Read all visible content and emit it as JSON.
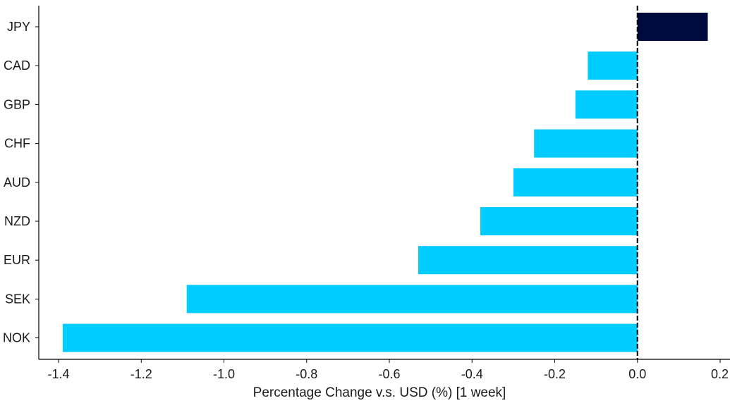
{
  "chart_data": {
    "type": "bar",
    "orientation": "horizontal",
    "categories": [
      "JPY",
      "CAD",
      "GBP",
      "CHF",
      "AUD",
      "NZD",
      "EUR",
      "SEK",
      "NOK"
    ],
    "values": [
      0.17,
      -0.12,
      -0.15,
      -0.25,
      -0.3,
      -0.38,
      -0.53,
      -1.09,
      -1.39
    ],
    "xlabel": "Percentage Change v.s. USD (%) [1 week]",
    "ylabel": "",
    "xlim": [
      -1.42,
      0.2
    ],
    "xticks": [
      "-1.4",
      "-1.2",
      "-1.0",
      "-0.8",
      "-0.6",
      "-0.4",
      "-0.2",
      "0.0",
      "0.2"
    ],
    "xtick_values": [
      -1.4,
      -1.2,
      -1.0,
      -0.8,
      -0.6,
      -0.4,
      -0.2,
      0.0,
      0.2
    ],
    "grid": false,
    "colors": {
      "positive": "#000a3d",
      "negative": "#00ccff",
      "zero_line": "#000000",
      "axis": "#000000"
    }
  }
}
